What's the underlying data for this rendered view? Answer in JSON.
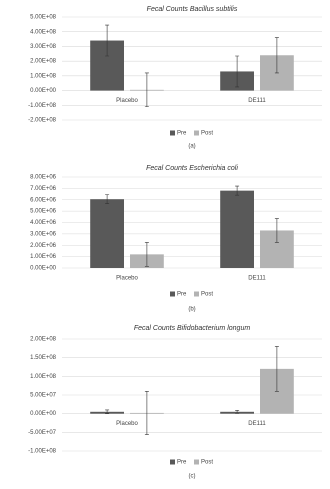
{
  "chart_data": [
    {
      "type": "bar",
      "title": "Fecal Counts Bacillus subtilis",
      "caption": "(a)",
      "categories": [
        "Placebo",
        "DE111"
      ],
      "series": [
        {
          "name": "Pre",
          "color": "#595959",
          "values": [
            340000000,
            130000000
          ],
          "errors": [
            105000000,
            105000000
          ]
        },
        {
          "name": "Post",
          "color": "#b3b3b3",
          "values": [
            5000000,
            240000000
          ],
          "errors": [
            115000000,
            120000000
          ]
        }
      ],
      "ylim": [
        -200000000,
        500000000
      ],
      "yticks": [
        {
          "value": -200000000,
          "label": "-2.00E+08"
        },
        {
          "value": -100000000,
          "label": "-1.00E+08"
        },
        {
          "value": 0,
          "label": "0.00E+00"
        },
        {
          "value": 100000000,
          "label": "1.00E+08"
        },
        {
          "value": 200000000,
          "label": "2.00E+08"
        },
        {
          "value": 300000000,
          "label": "3.00E+08"
        },
        {
          "value": 400000000,
          "label": "4.00E+08"
        },
        {
          "value": 500000000,
          "label": "5.00E+08"
        }
      ],
      "grid": true
    },
    {
      "type": "bar",
      "title": "Fecal Counts Escherichia coli",
      "caption": "(b)",
      "categories": [
        "Placebo",
        "DE111"
      ],
      "series": [
        {
          "name": "Pre",
          "color": "#595959",
          "values": [
            6050000,
            6800000
          ],
          "errors": [
            400000,
            400000
          ]
        },
        {
          "name": "Post",
          "color": "#b3b3b3",
          "values": [
            1200000,
            3300000
          ],
          "errors": [
            1050000,
            1050000
          ]
        }
      ],
      "ylim": [
        0,
        8000000
      ],
      "yticks": [
        {
          "value": 0,
          "label": "0.00E+00"
        },
        {
          "value": 1000000,
          "label": "1.00E+06"
        },
        {
          "value": 2000000,
          "label": "2.00E+06"
        },
        {
          "value": 3000000,
          "label": "3.00E+06"
        },
        {
          "value": 4000000,
          "label": "4.00E+06"
        },
        {
          "value": 5000000,
          "label": "5.00E+06"
        },
        {
          "value": 6000000,
          "label": "6.00E+06"
        },
        {
          "value": 7000000,
          "label": "7.00E+06"
        },
        {
          "value": 8000000,
          "label": "8.00E+06"
        }
      ],
      "grid": true
    },
    {
      "type": "bar",
      "title": "Fecal Counts Bifidobacterium longum",
      "caption": "(c)",
      "categories": [
        "Placebo",
        "DE111"
      ],
      "series": [
        {
          "name": "Pre",
          "color": "#595959",
          "values": [
            5000000,
            5000000
          ],
          "errors": [
            5000000,
            4000000
          ]
        },
        {
          "name": "Post",
          "color": "#b3b3b3",
          "values": [
            2000000,
            120000000
          ],
          "errors": [
            58000000,
            60000000
          ]
        }
      ],
      "ylim": [
        -100000000,
        200000000
      ],
      "yticks": [
        {
          "value": -100000000,
          "label": "-1.00E+08"
        },
        {
          "value": -50000000,
          "label": "-5.00E+07"
        },
        {
          "value": 0,
          "label": "0.00E+00"
        },
        {
          "value": 50000000,
          "label": "5.00E+07"
        },
        {
          "value": 100000000,
          "label": "1.00E+08"
        },
        {
          "value": 150000000,
          "label": "1.50E+08"
        },
        {
          "value": 200000000,
          "label": "2.00E+08"
        }
      ],
      "grid": true
    }
  ]
}
